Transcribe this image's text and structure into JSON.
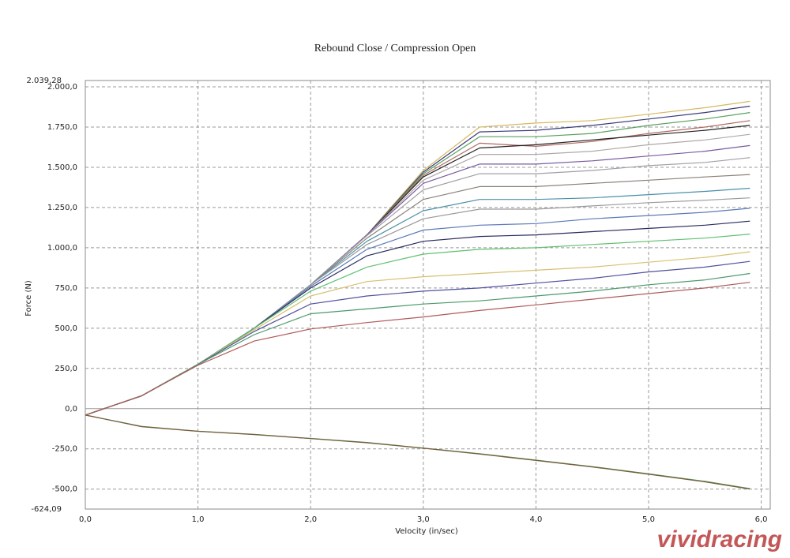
{
  "chart_data": {
    "type": "line",
    "title": "Rebound Close / Compression Open",
    "x_label": "Velocity (in/sec)",
    "y_label": "Force (N)",
    "watermark": "vividracing",
    "x": [
      0,
      0.5,
      1,
      1.5,
      2,
      2.5,
      3,
      3.5,
      4,
      4.5,
      5,
      5.5,
      5.9
    ],
    "xlim": [
      0,
      6.08
    ],
    "ylim": [
      -624.09,
      2039.28
    ],
    "xticks": [
      {
        "value": 0,
        "label": "0,0"
      },
      {
        "value": 1,
        "label": "1,0"
      },
      {
        "value": 2,
        "label": "2,0"
      },
      {
        "value": 3,
        "label": "3,0"
      },
      {
        "value": 4,
        "label": "4,0"
      },
      {
        "value": 5,
        "label": "5,0"
      },
      {
        "value": 6,
        "label": "6,0"
      }
    ],
    "yticks": [
      {
        "value": -624.09,
        "label": "-624,09"
      },
      {
        "value": -500,
        "label": "-500,0"
      },
      {
        "value": -250,
        "label": "-250,0"
      },
      {
        "value": 0,
        "label": "0,0"
      },
      {
        "value": 250,
        "label": "250,0"
      },
      {
        "value": 500,
        "label": "500,0"
      },
      {
        "value": 750,
        "label": "750,0"
      },
      {
        "value": 1000,
        "label": "1.000,0"
      },
      {
        "value": 1250,
        "label": "1.250,0"
      },
      {
        "value": 1500,
        "label": "1.500,0"
      },
      {
        "value": 1750,
        "label": "1.750,0"
      },
      {
        "value": 2000,
        "label": "2.000,0"
      },
      {
        "value": 2039.28,
        "label": "2.039,28"
      }
    ],
    "grid": true,
    "series": [
      {
        "color": "#d8b860",
        "values": [
          -40,
          80,
          275,
          500,
          770,
          1080,
          1480,
          1750,
          1775,
          1790,
          1830,
          1870,
          1910
        ]
      },
      {
        "color": "#3a3a7a",
        "values": [
          -40,
          80,
          275,
          500,
          770,
          1080,
          1470,
          1720,
          1730,
          1760,
          1800,
          1840,
          1880
        ]
      },
      {
        "color": "#5aa060",
        "values": [
          -40,
          80,
          275,
          500,
          770,
          1080,
          1460,
          1690,
          1690,
          1710,
          1760,
          1800,
          1840
        ]
      },
      {
        "color": "#b06a60",
        "values": [
          -40,
          80,
          275,
          500,
          770,
          1080,
          1450,
          1650,
          1630,
          1660,
          1710,
          1750,
          1790
        ]
      },
      {
        "color": "#222222",
        "values": [
          -40,
          80,
          275,
          500,
          770,
          1080,
          1440,
          1620,
          1640,
          1670,
          1700,
          1730,
          1760
        ]
      },
      {
        "color": "#b0a8a8",
        "values": [
          -40,
          80,
          275,
          500,
          770,
          1080,
          1420,
          1580,
          1580,
          1600,
          1640,
          1670,
          1705
        ]
      },
      {
        "color": "#7a5aa0",
        "values": [
          -40,
          80,
          275,
          500,
          770,
          1080,
          1400,
          1520,
          1520,
          1540,
          1570,
          1600,
          1635
        ]
      },
      {
        "color": "#a0a0a8",
        "values": [
          -40,
          80,
          275,
          500,
          770,
          1075,
          1360,
          1460,
          1460,
          1480,
          1510,
          1530,
          1560
        ]
      },
      {
        "color": "#8a8078",
        "values": [
          -40,
          80,
          275,
          500,
          770,
          1060,
          1300,
          1380,
          1380,
          1400,
          1420,
          1440,
          1455
        ]
      },
      {
        "color": "#4a90a8",
        "values": [
          -40,
          80,
          275,
          500,
          770,
          1040,
          1230,
          1300,
          1300,
          1310,
          1330,
          1350,
          1370
        ]
      },
      {
        "color": "#9a9a9a",
        "values": [
          -40,
          80,
          275,
          500,
          770,
          1020,
          1180,
          1240,
          1240,
          1260,
          1280,
          1295,
          1310
        ]
      },
      {
        "color": "#5a7ab8",
        "values": [
          -40,
          80,
          275,
          500,
          760,
          990,
          1110,
          1140,
          1150,
          1180,
          1200,
          1220,
          1245
        ]
      },
      {
        "color": "#2a2a60",
        "values": [
          -40,
          80,
          275,
          500,
          750,
          950,
          1040,
          1070,
          1080,
          1100,
          1120,
          1140,
          1165
        ]
      },
      {
        "color": "#60c070",
        "values": [
          -40,
          80,
          275,
          500,
          730,
          880,
          960,
          990,
          1000,
          1020,
          1040,
          1060,
          1085
        ]
      },
      {
        "color": "#d8c070",
        "values": [
          -40,
          80,
          275,
          490,
          700,
          790,
          820,
          840,
          860,
          880,
          910,
          940,
          975
        ]
      },
      {
        "color": "#5050a0",
        "values": [
          -40,
          80,
          275,
          480,
          650,
          700,
          730,
          750,
          780,
          810,
          850,
          880,
          915
        ]
      },
      {
        "color": "#4a9a6a",
        "values": [
          -40,
          80,
          275,
          460,
          590,
          620,
          650,
          670,
          700,
          730,
          770,
          800,
          840
        ]
      },
      {
        "color": "#b05a5a",
        "values": [
          -40,
          80,
          270,
          420,
          495,
          535,
          570,
          610,
          645,
          680,
          715,
          750,
          785
        ]
      },
      {
        "color": "#4a9a4a",
        "values": [
          -40,
          -110,
          -140,
          -160,
          -185,
          -210,
          -245,
          -280,
          -320,
          -360,
          -405,
          -452,
          -497
        ]
      },
      {
        "color": "#7a5a40",
        "values": [
          -40,
          -112,
          -141,
          -161,
          -186,
          -212,
          -246,
          -282,
          -322,
          -362,
          -408,
          -455,
          -500
        ]
      }
    ]
  }
}
